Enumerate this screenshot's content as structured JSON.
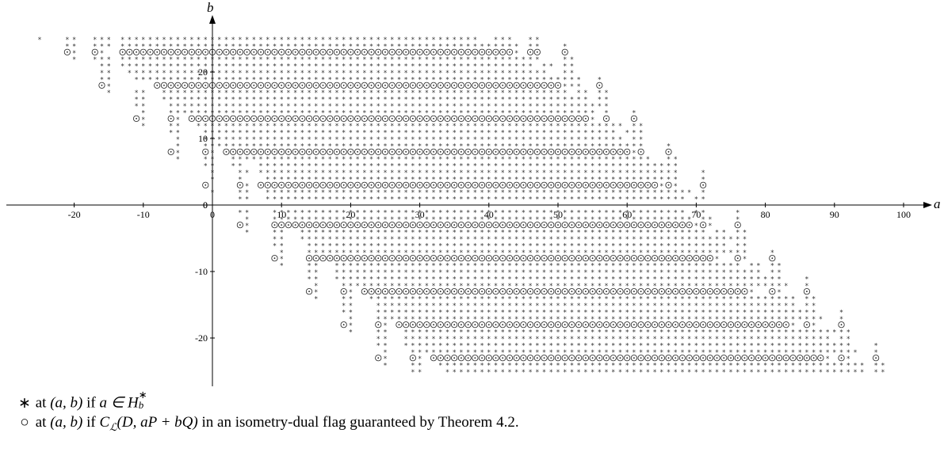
{
  "chart_data": {
    "type": "scatter",
    "x_axis": {
      "label": "a",
      "range": [
        -30,
        105
      ],
      "ticks": [
        -20,
        -10,
        0,
        10,
        20,
        30,
        40,
        50,
        60,
        70,
        80,
        90,
        100
      ]
    },
    "y_axis": {
      "label": "b",
      "range": [
        -27,
        29
      ],
      "ticks": [
        -20,
        -10,
        0,
        10,
        20
      ]
    },
    "grid": false,
    "markers": {
      "star": "*",
      "circle": "○"
    },
    "circle_rows": [
      {
        "b": 23,
        "segments": [
          [
            -21,
            -21
          ],
          [
            -17,
            -17
          ],
          [
            -13,
            43
          ],
          [
            46,
            47
          ],
          [
            51,
            51
          ]
        ]
      },
      {
        "b": 18,
        "segments": [
          [
            -16,
            -16
          ],
          [
            -8,
            50
          ],
          [
            56,
            56
          ]
        ]
      },
      {
        "b": 13,
        "segments": [
          [
            -11,
            -11
          ],
          [
            -6,
            -6
          ],
          [
            -3,
            54
          ],
          [
            57,
            57
          ],
          [
            61,
            61
          ]
        ]
      },
      {
        "b": 8,
        "segments": [
          [
            -6,
            -6
          ],
          [
            -1,
            -1
          ],
          [
            2,
            60
          ],
          [
            62,
            62
          ],
          [
            66,
            66
          ]
        ]
      },
      {
        "b": 3,
        "segments": [
          [
            -1,
            -1
          ],
          [
            4,
            4
          ],
          [
            7,
            64
          ],
          [
            66,
            66
          ],
          [
            71,
            71
          ]
        ]
      },
      {
        "b": -3,
        "segments": [
          [
            4,
            4
          ],
          [
            9,
            69
          ],
          [
            71,
            71
          ],
          [
            76,
            76
          ]
        ]
      },
      {
        "b": -8,
        "segments": [
          [
            9,
            9
          ],
          [
            14,
            72
          ],
          [
            76,
            76
          ],
          [
            81,
            81
          ]
        ]
      },
      {
        "b": -13,
        "segments": [
          [
            14,
            14
          ],
          [
            19,
            19
          ],
          [
            22,
            77
          ],
          [
            81,
            81
          ],
          [
            86,
            86
          ]
        ]
      },
      {
        "b": -18,
        "segments": [
          [
            19,
            19
          ],
          [
            24,
            24
          ],
          [
            27,
            83
          ],
          [
            86,
            86
          ],
          [
            91,
            91
          ]
        ]
      },
      {
        "b": -23,
        "segments": [
          [
            24,
            24
          ],
          [
            29,
            29
          ],
          [
            32,
            88
          ],
          [
            91,
            91
          ],
          [
            96,
            96
          ]
        ]
      }
    ],
    "star_rows": [
      {
        "b": 25,
        "segments": [
          [
            -25,
            -25
          ],
          [
            -21,
            -20
          ],
          [
            -17,
            -15
          ],
          [
            -13,
            38
          ],
          [
            41,
            43
          ],
          [
            46,
            47
          ]
        ]
      },
      {
        "b": 24,
        "segments": [
          [
            -21,
            -20
          ],
          [
            -17,
            -15
          ],
          [
            -13,
            44
          ],
          [
            46,
            47
          ],
          [
            51,
            51
          ]
        ]
      },
      {
        "b": 23,
        "segments": [
          [
            -20,
            -20
          ],
          [
            -16,
            -16
          ],
          [
            -12,
            44
          ],
          [
            46,
            47
          ],
          [
            51,
            51
          ]
        ]
      },
      {
        "b": 22,
        "segments": [
          [
            -20,
            -20
          ],
          [
            -17,
            -15
          ],
          [
            -13,
            47
          ],
          [
            51,
            52
          ]
        ]
      },
      {
        "b": 21,
        "segments": [
          [
            -16,
            -15
          ],
          [
            -13,
            46
          ],
          [
            48,
            49
          ],
          [
            51,
            52
          ]
        ]
      },
      {
        "b": 20,
        "segments": [
          [
            -16,
            -15
          ],
          [
            -12,
            48
          ],
          [
            51,
            52
          ]
        ]
      },
      {
        "b": 19,
        "segments": [
          [
            -16,
            -15
          ],
          [
            -11,
            51
          ],
          [
            52,
            53
          ],
          [
            56,
            56
          ]
        ]
      },
      {
        "b": 18,
        "segments": [
          [
            -15,
            -15
          ],
          [
            -7,
            51
          ],
          [
            52,
            53
          ],
          [
            56,
            56
          ]
        ]
      },
      {
        "b": 17,
        "segments": [
          [
            -15,
            -15
          ],
          [
            -11,
            -10
          ],
          [
            -7,
            51
          ],
          [
            53,
            54
          ],
          [
            56,
            57
          ]
        ]
      },
      {
        "b": 16,
        "segments": [
          [
            -11,
            -10
          ],
          [
            -7,
            52
          ],
          [
            53,
            54
          ],
          [
            56,
            57
          ]
        ]
      },
      {
        "b": 15,
        "segments": [
          [
            -11,
            -10
          ],
          [
            -6,
            54
          ],
          [
            55,
            56
          ],
          [
            57,
            57
          ]
        ]
      },
      {
        "b": 14,
        "segments": [
          [
            -10,
            -10
          ],
          [
            -6,
            55
          ],
          [
            57,
            57
          ],
          [
            61,
            61
          ]
        ]
      },
      {
        "b": 13,
        "segments": [
          [
            -10,
            -10
          ],
          [
            -5,
            -5
          ],
          [
            -2,
            55
          ],
          [
            57,
            57
          ],
          [
            61,
            61
          ]
        ]
      },
      {
        "b": 12,
        "segments": [
          [
            -10,
            -10
          ],
          [
            -6,
            -5
          ],
          [
            -2,
            57
          ],
          [
            58,
            59
          ],
          [
            61,
            62
          ]
        ]
      },
      {
        "b": 11,
        "segments": [
          [
            -6,
            -5
          ],
          [
            -1,
            58
          ],
          [
            60,
            60
          ],
          [
            61,
            62
          ]
        ]
      },
      {
        "b": 10,
        "segments": [
          [
            -5,
            -5
          ],
          [
            -1,
            59
          ],
          [
            61,
            62
          ]
        ]
      },
      {
        "b": 9,
        "segments": [
          [
            -5,
            -5
          ],
          [
            -1,
            60
          ],
          [
            61,
            62
          ],
          [
            66,
            66
          ]
        ]
      },
      {
        "b": 8,
        "segments": [
          [
            -5,
            -5
          ],
          [
            0,
            0
          ],
          [
            3,
            61
          ],
          [
            62,
            62
          ],
          [
            66,
            66
          ]
        ]
      },
      {
        "b": 7,
        "segments": [
          [
            -5,
            -5
          ],
          [
            -1,
            0
          ],
          [
            3,
            63
          ],
          [
            66,
            67
          ]
        ]
      },
      {
        "b": 6,
        "segments": [
          [
            -1,
            0
          ],
          [
            3,
            4
          ],
          [
            7,
            63
          ],
          [
            64,
            65
          ],
          [
            66,
            67
          ]
        ]
      },
      {
        "b": 5,
        "segments": [
          [
            0,
            0
          ],
          [
            4,
            5
          ],
          [
            7,
            65
          ],
          [
            66,
            67
          ],
          [
            71,
            71
          ]
        ]
      },
      {
        "b": 4,
        "segments": [
          [
            0,
            0
          ],
          [
            4,
            4
          ],
          [
            8,
            66
          ],
          [
            67,
            67
          ],
          [
            71,
            71
          ]
        ]
      },
      {
        "b": 3,
        "segments": [
          [
            5,
            5
          ],
          [
            8,
            65
          ],
          [
            67,
            67
          ],
          [
            71,
            71
          ]
        ]
      },
      {
        "b": 2,
        "segments": [
          [
            0,
            0
          ],
          [
            4,
            5
          ],
          [
            8,
            67
          ],
          [
            68,
            69
          ],
          [
            71,
            71
          ]
        ]
      },
      {
        "b": 1,
        "segments": [
          [
            4,
            5
          ],
          [
            8,
            68
          ],
          [
            70,
            71
          ]
        ]
      },
      {
        "b": 0,
        "segments": []
      },
      {
        "b": -1,
        "segments": [
          [
            4,
            5
          ],
          [
            9,
            68
          ],
          [
            70,
            71
          ],
          [
            76,
            76
          ]
        ]
      },
      {
        "b": -2,
        "segments": [
          [
            5,
            5
          ],
          [
            9,
            69
          ],
          [
            71,
            72
          ],
          [
            76,
            76
          ]
        ]
      },
      {
        "b": -3,
        "segments": [
          [
            5,
            5
          ],
          [
            10,
            70
          ],
          [
            72,
            72
          ],
          [
            76,
            76
          ]
        ]
      },
      {
        "b": -4,
        "segments": [
          [
            5,
            5
          ],
          [
            9,
            10
          ],
          [
            13,
            71
          ],
          [
            73,
            74
          ],
          [
            76,
            77
          ]
        ]
      },
      {
        "b": -5,
        "segments": [
          [
            9,
            10
          ],
          [
            13,
            73
          ],
          [
            74,
            75
          ],
          [
            76,
            77
          ]
        ]
      },
      {
        "b": -6,
        "segments": [
          [
            9,
            10
          ],
          [
            14,
            74
          ],
          [
            76,
            77
          ]
        ]
      },
      {
        "b": -7,
        "segments": [
          [
            10,
            10
          ],
          [
            14,
            75
          ],
          [
            76,
            77
          ],
          [
            81,
            81
          ]
        ]
      },
      {
        "b": -8,
        "segments": [
          [
            10,
            10
          ],
          [
            15,
            73
          ],
          [
            77,
            77
          ],
          [
            81,
            81
          ]
        ]
      },
      {
        "b": -9,
        "segments": [
          [
            10,
            10
          ],
          [
            14,
            15
          ],
          [
            18,
            76
          ],
          [
            78,
            79
          ],
          [
            81,
            82
          ]
        ]
      },
      {
        "b": -10,
        "segments": [
          [
            14,
            15
          ],
          [
            18,
            79
          ],
          [
            81,
            82
          ]
        ]
      },
      {
        "b": -11,
        "segments": [
          [
            14,
            15
          ],
          [
            18,
            80
          ],
          [
            81,
            82
          ],
          [
            86,
            86
          ]
        ]
      },
      {
        "b": -12,
        "segments": [
          [
            15,
            15
          ],
          [
            19,
            81
          ],
          [
            82,
            83
          ],
          [
            86,
            86
          ]
        ]
      },
      {
        "b": -13,
        "segments": [
          [
            15,
            15
          ],
          [
            20,
            20
          ],
          [
            23,
            78
          ],
          [
            82,
            82
          ],
          [
            86,
            86
          ]
        ]
      },
      {
        "b": -14,
        "segments": [
          [
            15,
            15
          ],
          [
            19,
            20
          ],
          [
            23,
            82
          ],
          [
            83,
            84
          ],
          [
            86,
            87
          ]
        ]
      },
      {
        "b": -15,
        "segments": [
          [
            19,
            20
          ],
          [
            24,
            84
          ],
          [
            86,
            87
          ]
        ]
      },
      {
        "b": -16,
        "segments": [
          [
            19,
            20
          ],
          [
            24,
            85
          ],
          [
            86,
            87
          ],
          [
            91,
            91
          ]
        ]
      },
      {
        "b": -17,
        "segments": [
          [
            20,
            20
          ],
          [
            24,
            86
          ],
          [
            87,
            88
          ],
          [
            91,
            91
          ]
        ]
      },
      {
        "b": -18,
        "segments": [
          [
            20,
            20
          ],
          [
            25,
            25
          ],
          [
            28,
            84
          ],
          [
            87,
            87
          ],
          [
            91,
            91
          ]
        ]
      },
      {
        "b": -19,
        "segments": [
          [
            20,
            20
          ],
          [
            24,
            25
          ],
          [
            28,
            88
          ],
          [
            89,
            90
          ],
          [
            91,
            92
          ]
        ]
      },
      {
        "b": -20,
        "segments": [
          [
            24,
            25
          ],
          [
            28,
            89
          ],
          [
            91,
            92
          ]
        ]
      },
      {
        "b": -21,
        "segments": [
          [
            24,
            25
          ],
          [
            28,
            90
          ],
          [
            91,
            92
          ],
          [
            96,
            96
          ]
        ]
      },
      {
        "b": -22,
        "segments": [
          [
            25,
            25
          ],
          [
            29,
            91
          ],
          [
            92,
            93
          ],
          [
            96,
            96
          ]
        ]
      },
      {
        "b": -23,
        "segments": [
          [
            25,
            25
          ],
          [
            30,
            30
          ],
          [
            33,
            89
          ],
          [
            92,
            92
          ],
          [
            96,
            96
          ]
        ]
      },
      {
        "b": -24,
        "segments": [
          [
            25,
            25
          ],
          [
            29,
            30
          ],
          [
            33,
            92
          ],
          [
            93,
            94
          ],
          [
            96,
            97
          ]
        ]
      },
      {
        "b": -25,
        "segments": [
          [
            29,
            30
          ],
          [
            34,
            94
          ],
          [
            96,
            97
          ]
        ]
      }
    ]
  },
  "legend": {
    "star": {
      "marker": "∗",
      "text_before": " at ",
      "coords": "(a, b)",
      "text_mid": " if ",
      "condition_a": "a ∈ ",
      "H": "H",
      "H_sup": "∗",
      "H_sub": "b"
    },
    "circle": {
      "marker": "○",
      "text_before": " at ",
      "coords": "(a, b)",
      "text_mid": " if ",
      "code": "C",
      "code_sub": "ℒ",
      "code_args": "(D, aP + bQ)",
      "text_after": " in an isometry-dual flag guaranteed by Theorem 4.2."
    }
  }
}
